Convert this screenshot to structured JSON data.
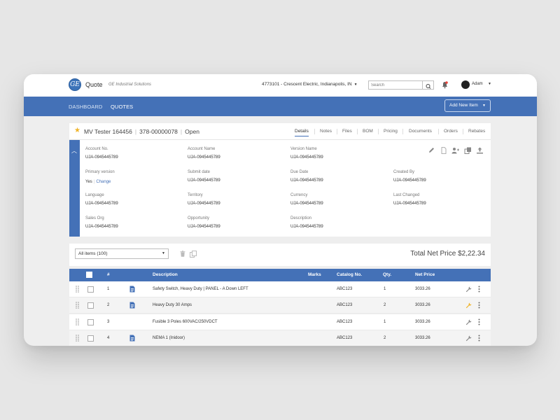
{
  "header": {
    "app_title": "Quote",
    "app_subtitle": "GE Industrial Solutions",
    "account": "4773101 - Crescent Electric, Indianapolis, IN",
    "search_placeholder": "Search",
    "user": "Adam"
  },
  "nav": {
    "items": [
      "DASHBOARD",
      "QUOTES"
    ],
    "active": "QUOTES",
    "add_button": "Add New Item"
  },
  "quote": {
    "name": "MV Tester 164456",
    "number": "378-00000078",
    "status": "Open",
    "tabs": [
      "Details",
      "Notes",
      "Files",
      "BOM",
      "Pricing",
      "Documents",
      "Orders",
      "Rebates"
    ],
    "active_tab": "Details",
    "fields": [
      {
        "label": "Account No.",
        "value": "UJA-0945445789"
      },
      {
        "label": "Account Name",
        "value": "UJA-0945445789"
      },
      {
        "label": "Version Name",
        "value": "UJA-0945445789"
      },
      {
        "label": "Primary version",
        "value": "Yes",
        "link": "Change"
      },
      {
        "label": "Submit date",
        "value": "UJA-0945445789"
      },
      {
        "label": "Due Date",
        "value": "UJA-0945445789"
      },
      {
        "label": "Created By",
        "value": "UJA-0945445789"
      },
      {
        "label": "Language",
        "value": "UJA-0945445789"
      },
      {
        "label": "Territory",
        "value": "UJA-0945445789"
      },
      {
        "label": "Currency",
        "value": "UJA-0945445789"
      },
      {
        "label": "Last Changed",
        "value": "UJA-0945445789"
      },
      {
        "label": "Sales Org",
        "value": "UJA-0945445789"
      },
      {
        "label": "Opportunity",
        "value": "UJA-0945445789"
      },
      {
        "label": "Description",
        "value": "UJA-0945445789"
      }
    ],
    "actions": [
      "edit-icon",
      "document-icon",
      "add-user-icon",
      "copy-icon",
      "upload-icon"
    ]
  },
  "list": {
    "filter": "All items (100)",
    "total": "Total Net Price $2,22.34",
    "columns": {
      "num": "#",
      "description": "Description",
      "marks": "Marks",
      "catalog": "Catalog No.",
      "qty": "Qty.",
      "net_price": "Net Price"
    },
    "rows": [
      {
        "num": "1",
        "description": "Safety Switch, Heavy Duty | PANEL - A Down LEFT",
        "catalog": "ABC123",
        "qty": "1",
        "net_price": "3033.26",
        "has_doc": true,
        "wrench_color": "#888888"
      },
      {
        "num": "2",
        "description": "Heavy Duty 30 Amps",
        "catalog": "ABC123",
        "qty": "2",
        "net_price": "3033.26",
        "has_doc": true,
        "wrench_color": "#f0b429"
      },
      {
        "num": "3",
        "description": "Fusible 3 Poles 600VAC/250VDCT",
        "catalog": "ABC123",
        "qty": "1",
        "net_price": "3033.26",
        "has_doc": false,
        "wrench_color": "#888888"
      },
      {
        "num": "4",
        "description": "NEMA 1 (Inidoor)",
        "catalog": "ABC123",
        "qty": "2",
        "net_price": "3033.26",
        "has_doc": true,
        "wrench_color": "#888888"
      }
    ]
  },
  "colors": {
    "brand_blue": "#4471b7",
    "accent_yellow": "#f0b429",
    "notification_red": "#e8453c"
  }
}
